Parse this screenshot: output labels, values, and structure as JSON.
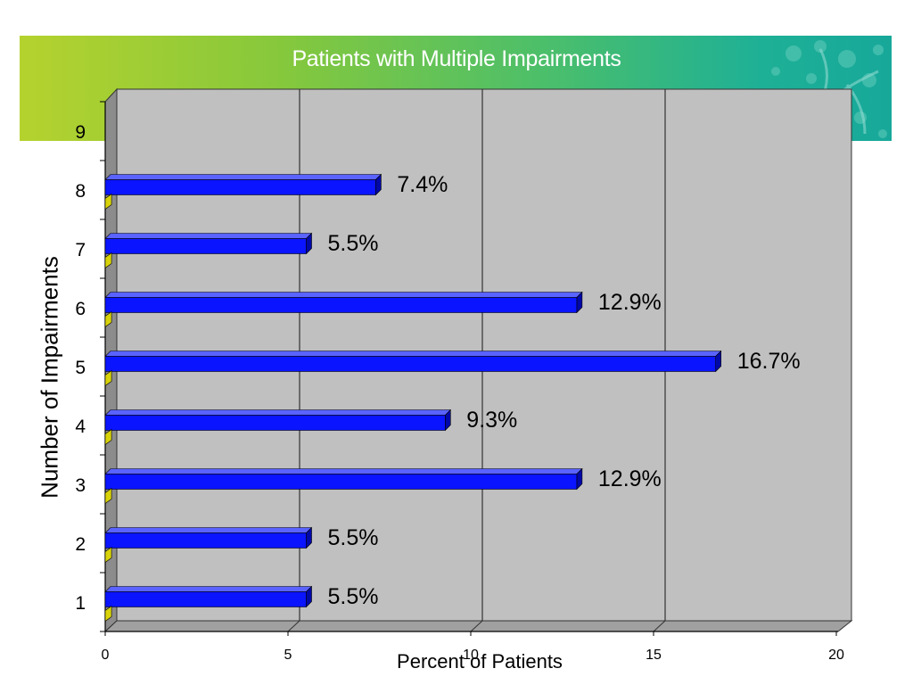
{
  "chart_data": {
    "type": "bar",
    "orientation": "horizontal",
    "title": "Patients with Multiple Impairments",
    "xlabel": "Percent of Patients",
    "ylabel": "Number of Impairments",
    "categories": [
      "1",
      "2",
      "3",
      "4",
      "5",
      "6",
      "7",
      "8",
      "9"
    ],
    "series": [
      {
        "color": "#0a14ff",
        "values": [
          5.5,
          5.5,
          12.9,
          9.3,
          16.7,
          12.9,
          5.5,
          7.4,
          null
        ]
      },
      {
        "color": "#d8d20a",
        "values": [
          0.1,
          0.1,
          0.1,
          0.1,
          0.1,
          0.1,
          0.1,
          0.1,
          null
        ]
      }
    ],
    "data_labels": [
      "5.5%",
      "5.5%",
      "12.9%",
      "9.3%",
      "16.7%",
      "12.9%",
      "5.5%",
      "7.4%",
      ""
    ],
    "xticks": [
      "0",
      "5",
      "10",
      "15",
      "20"
    ],
    "xlim": [
      0,
      20
    ],
    "grid": true,
    "legend": "none",
    "colors": {
      "plot_wall": "#c0c0c0",
      "side_wall": "#8c8c8c",
      "floor": "#a0a0a0"
    }
  }
}
